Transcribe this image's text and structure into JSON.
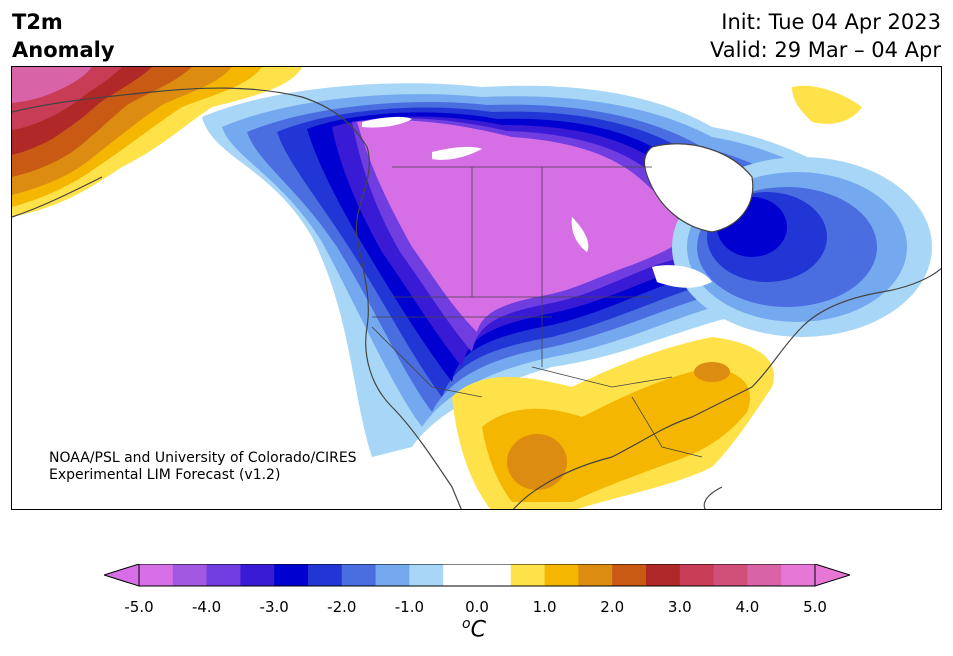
{
  "header": {
    "title_line1": "T2m",
    "title_line2": "Anomaly",
    "init_text": "Init: Tue 04 Apr 2023",
    "valid_text": "Valid: 29 Mar – 04 Apr"
  },
  "credit": {
    "line1": "NOAA/PSL and University of Colorado/CIRES",
    "line2": "Experimental LIM Forecast (v1.2)"
  },
  "colorbar": {
    "unit_base": "C",
    "unit_sup": "o",
    "levels": [
      "-5.0",
      "-4.0",
      "-3.0",
      "-2.0",
      "-1.0",
      "0.0",
      "1.0",
      "2.0",
      "3.0",
      "4.0",
      "5.0"
    ],
    "colors": [
      "#d66ee6",
      "#a157df",
      "#6f3de0",
      "#3a1bd5",
      "#0000d0",
      "#2236d6",
      "#4a6ee0",
      "#74a9ef",
      "#a8d6f7",
      "#ffffff",
      "#ffffff",
      "#ffe24a",
      "#f4b600",
      "#dc8c10",
      "#c85a14",
      "#b02828",
      "#c83c55",
      "#d0507a",
      "#d863a6",
      "#e677d6"
    ],
    "under_color": "#d66ee6",
    "over_color": "#e677d6"
  }
}
